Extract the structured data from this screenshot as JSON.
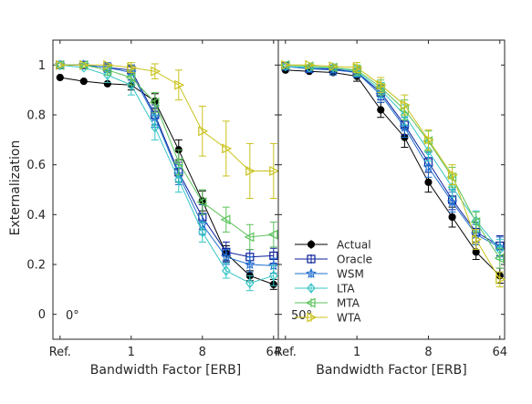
{
  "chart_data": {
    "type": "line",
    "y_label": "Externalization",
    "x_label": "Bandwidth Factor [ERB]",
    "x_ticks": [
      {
        "label": "Ref.",
        "index": 0
      },
      {
        "label": "1",
        "index": 3
      },
      {
        "label": "8",
        "index": 6
      },
      {
        "label": "64",
        "index": 9
      }
    ],
    "x_index_range": [
      -0.3,
      9.2
    ],
    "y_ticks": [
      "0",
      "0.2",
      "0.4",
      "0.6",
      "0.8",
      "1"
    ],
    "ylim": [
      -0.1,
      1.1
    ],
    "grid": false,
    "legend_position": "bottom-left of right panel",
    "series_styles": [
      {
        "name": "Actual",
        "color": "#000000",
        "marker": "dot"
      },
      {
        "name": "Oracle",
        "color": "#0a1e9a",
        "marker": "square"
      },
      {
        "name": "WSM",
        "color": "#1f6fcf",
        "marker": "star"
      },
      {
        "name": "LTA",
        "color": "#36c4c4",
        "marker": "diamond"
      },
      {
        "name": "MTA",
        "color": "#5cc25c",
        "marker": "tri-left"
      },
      {
        "name": "WTA",
        "color": "#c9c21c",
        "marker": "tri-right"
      }
    ],
    "panels": [
      {
        "label": "0°",
        "series": [
          {
            "name": "Actual",
            "x": [
              0,
              1,
              2,
              3,
              4,
              5,
              6,
              7,
              8,
              9
            ],
            "y": [
              0.95,
              0.935,
              0.925,
              0.92,
              0.855,
              0.66,
              0.455,
              0.245,
              0.155,
              0.12
            ],
            "err": [
              0.01,
              0.01,
              0.01,
              0.02,
              0.03,
              0.04,
              0.04,
              0.03,
              0.02,
              0.02
            ]
          },
          {
            "name": "Oracle",
            "x": [
              0,
              1,
              2,
              3,
              4,
              5,
              6,
              7,
              8,
              9
            ],
            "y": [
              1.0,
              1.0,
              0.99,
              0.98,
              0.8,
              0.57,
              0.39,
              0.25,
              0.23,
              0.235
            ],
            "err": [
              0.01,
              0.01,
              0.01,
              0.02,
              0.04,
              0.04,
              0.05,
              0.04,
              0.03,
              0.03
            ]
          },
          {
            "name": "WSM",
            "x": [
              0,
              1,
              2,
              3,
              4,
              5,
              6,
              7,
              8,
              9
            ],
            "y": [
              1.0,
              1.0,
              0.99,
              0.97,
              0.79,
              0.56,
              0.36,
              0.23,
              0.2,
              0.195
            ],
            "err": [
              0.01,
              0.01,
              0.02,
              0.03,
              0.04,
              0.04,
              0.04,
              0.03,
              0.03,
              0.03
            ]
          },
          {
            "name": "LTA",
            "x": [
              0,
              1,
              2,
              3,
              4,
              5,
              6,
              7,
              8,
              9
            ],
            "y": [
              1.0,
              0.99,
              0.96,
              0.92,
              0.75,
              0.54,
              0.33,
              0.175,
              0.125,
              0.155
            ],
            "err": [
              0.01,
              0.01,
              0.03,
              0.04,
              0.05,
              0.05,
              0.04,
              0.03,
              0.03,
              0.04
            ]
          },
          {
            "name": "MTA",
            "x": [
              0,
              1,
              2,
              3,
              4,
              5,
              6,
              7,
              8,
              9
            ],
            "y": [
              1.0,
              1.0,
              0.98,
              0.95,
              0.85,
              0.61,
              0.45,
              0.38,
              0.31,
              0.32
            ],
            "err": [
              0.01,
              0.01,
              0.02,
              0.03,
              0.04,
              0.05,
              0.05,
              0.05,
              0.05,
              0.05
            ]
          },
          {
            "name": "WTA",
            "x": [
              0,
              1,
              2,
              3,
              4,
              5,
              6,
              7,
              8,
              9
            ],
            "y": [
              1.0,
              1.0,
              1.0,
              0.99,
              0.975,
              0.92,
              0.735,
              0.665,
              0.575,
              0.575
            ],
            "err": [
              0.01,
              0.01,
              0.01,
              0.02,
              0.03,
              0.06,
              0.1,
              0.11,
              0.11,
              0.11
            ]
          }
        ]
      },
      {
        "label": "50°",
        "series": [
          {
            "name": "Actual",
            "x": [
              0,
              1,
              2,
              3,
              4,
              5,
              6,
              7,
              8,
              9
            ],
            "y": [
              0.98,
              0.975,
              0.97,
              0.955,
              0.82,
              0.71,
              0.53,
              0.39,
              0.25,
              0.155
            ],
            "err": [
              0.01,
              0.01,
              0.01,
              0.02,
              0.03,
              0.04,
              0.04,
              0.04,
              0.03,
              0.03
            ]
          },
          {
            "name": "Oracle",
            "x": [
              0,
              1,
              2,
              3,
              4,
              5,
              6,
              7,
              8,
              9
            ],
            "y": [
              0.995,
              0.985,
              0.985,
              0.97,
              0.89,
              0.76,
              0.61,
              0.46,
              0.33,
              0.275
            ],
            "err": [
              0.01,
              0.01,
              0.01,
              0.02,
              0.03,
              0.04,
              0.04,
              0.04,
              0.04,
              0.04
            ]
          },
          {
            "name": "WSM",
            "x": [
              0,
              1,
              2,
              3,
              4,
              5,
              6,
              7,
              8,
              9
            ],
            "y": [
              0.995,
              0.985,
              0.98,
              0.97,
              0.88,
              0.75,
              0.59,
              0.45,
              0.32,
              0.27
            ],
            "err": [
              0.01,
              0.01,
              0.02,
              0.02,
              0.03,
              0.04,
              0.04,
              0.04,
              0.04,
              0.04
            ]
          },
          {
            "name": "LTA",
            "x": [
              0,
              1,
              2,
              3,
              4,
              5,
              6,
              7,
              8,
              9
            ],
            "y": [
              0.995,
              0.99,
              0.99,
              0.975,
              0.9,
              0.8,
              0.655,
              0.51,
              0.375,
              0.26
            ],
            "err": [
              0.01,
              0.01,
              0.01,
              0.02,
              0.03,
              0.04,
              0.04,
              0.04,
              0.04,
              0.04
            ]
          },
          {
            "name": "MTA",
            "x": [
              0,
              1,
              2,
              3,
              4,
              5,
              6,
              7,
              8,
              9
            ],
            "y": [
              1.0,
              0.995,
              0.99,
              0.98,
              0.91,
              0.82,
              0.695,
              0.55,
              0.37,
              0.225
            ],
            "err": [
              0.01,
              0.01,
              0.01,
              0.02,
              0.03,
              0.04,
              0.04,
              0.04,
              0.04,
              0.04
            ]
          },
          {
            "name": "WTA",
            "x": [
              0,
              1,
              2,
              3,
              4,
              5,
              6,
              7,
              8,
              9
            ],
            "y": [
              1.0,
              1.0,
              0.995,
              0.99,
              0.92,
              0.84,
              0.7,
              0.56,
              0.3,
              0.14
            ],
            "err": [
              0.01,
              0.01,
              0.01,
              0.02,
              0.03,
              0.04,
              0.04,
              0.04,
              0.04,
              0.03
            ]
          }
        ]
      }
    ]
  }
}
